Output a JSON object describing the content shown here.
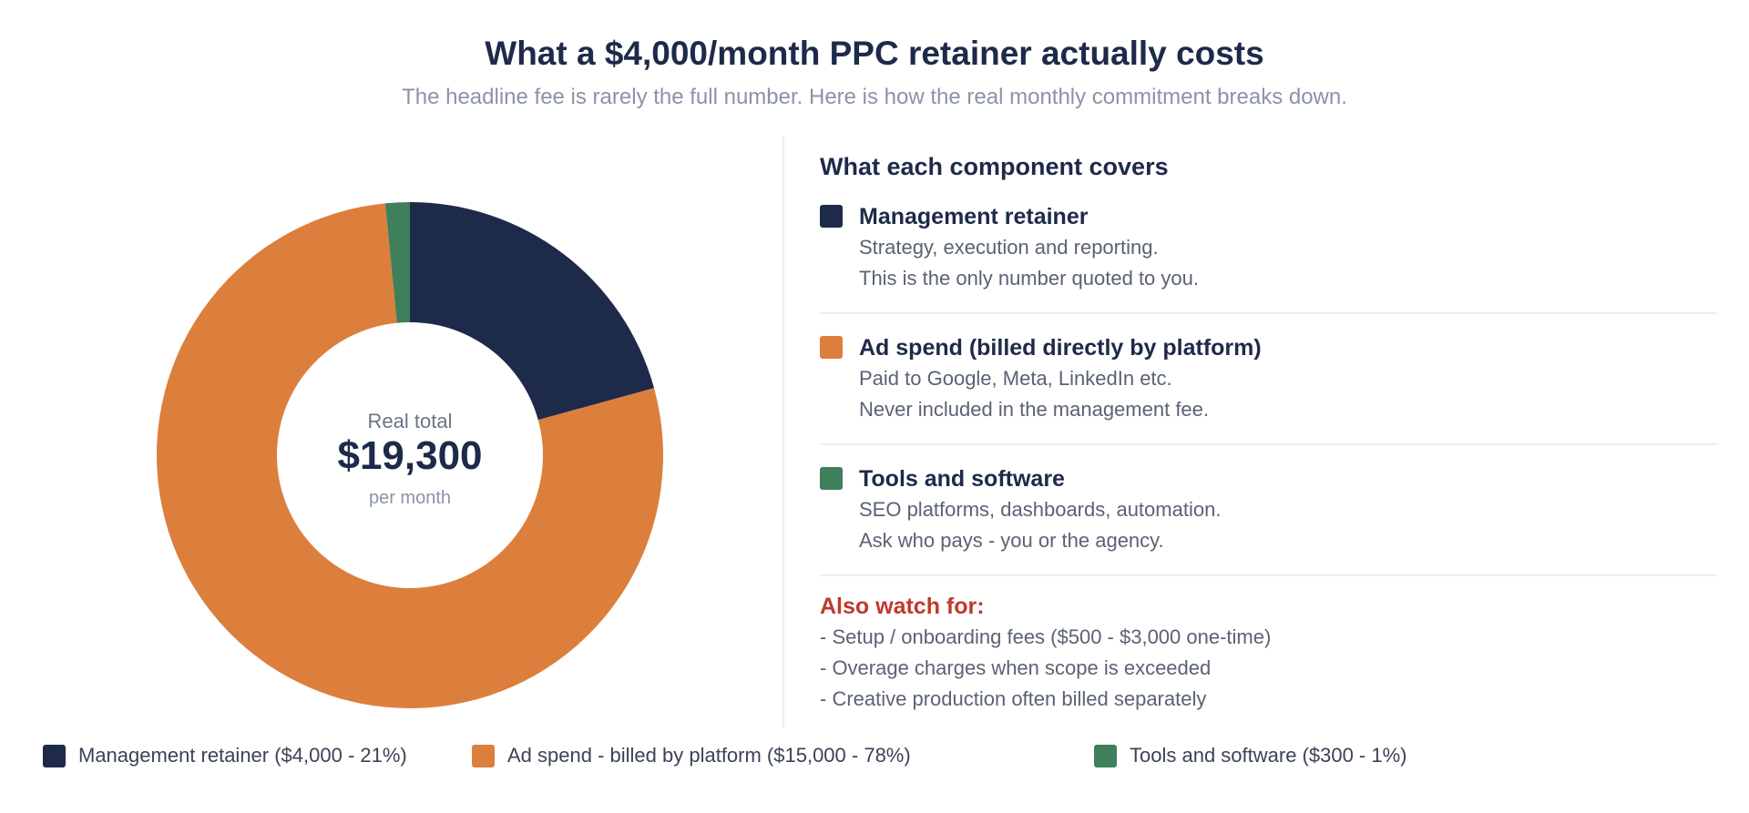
{
  "title": "What a $4,000/month PPC retainer actually costs",
  "subtitle": "The headline fee is rarely the full number. Here is how the real monthly commitment breaks down.",
  "center": {
    "top": "Real total",
    "value": "$19,300",
    "bottom": "per month"
  },
  "panel": {
    "heading": "What each component covers",
    "components": [
      {
        "title": "Management retainer",
        "lines": [
          "Strategy, execution and reporting.",
          "This is the only number quoted to you."
        ],
        "color": "#1e2a4a"
      },
      {
        "title": "Ad spend (billed directly by platform)",
        "lines": [
          "Paid to Google, Meta, LinkedIn etc.",
          "Never included in the management fee."
        ],
        "color": "#dc7f3c"
      },
      {
        "title": "Tools and software",
        "lines": [
          "SEO platforms, dashboards, automation.",
          "Ask who pays - you or the agency."
        ],
        "color": "#3f7f5c"
      }
    ],
    "watch": {
      "heading": "Also watch for:",
      "items": [
        "- Setup / onboarding fees ($500 - $3,000 one-time)",
        "- Overage charges when scope is exceeded",
        "- Creative production often billed separately"
      ]
    }
  },
  "chart_data": {
    "type": "pie",
    "variant": "donut",
    "categories": [
      "Management retainer",
      "Ad spend - billed by platform",
      "Tools and software"
    ],
    "values": [
      4000,
      15000,
      300
    ],
    "percents": [
      21,
      78,
      1
    ],
    "colors": [
      "#1e2a4a",
      "#dc7f3c",
      "#3f7f5c"
    ],
    "legend_labels": [
      "Management retainer ($4,000 - 21%)",
      "Ad spend - billed by platform ($15,000 - 78%)",
      "Tools and software ($300 - 1%)"
    ],
    "total": 19300,
    "legend_position": "bottom"
  }
}
